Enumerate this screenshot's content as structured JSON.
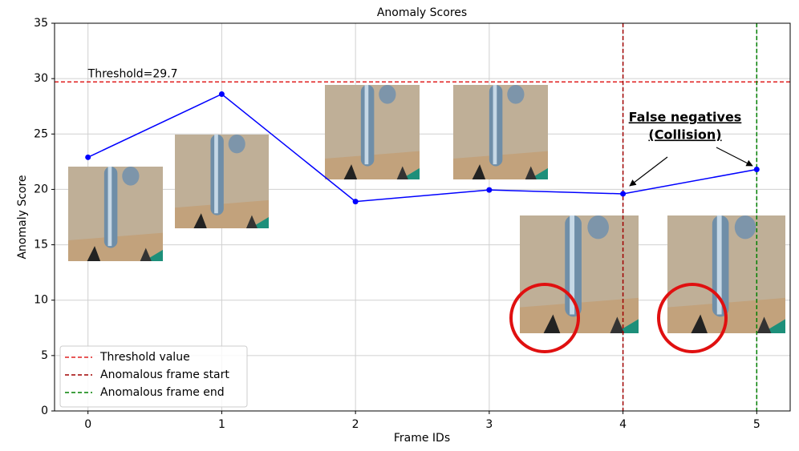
{
  "chart_data": {
    "type": "line",
    "title": "Anomaly Scores",
    "x_label": "Frame IDs",
    "y_label": "Anomaly Score",
    "x": [
      0,
      1,
      2,
      3,
      4,
      5
    ],
    "values": [
      22.9,
      28.6,
      18.9,
      19.95,
      19.6,
      21.8
    ],
    "color": "#0000ff",
    "xlim": [
      -0.25,
      5.25
    ],
    "xticks": [
      0,
      1,
      2,
      3,
      4,
      5
    ],
    "ylim": [
      0,
      35
    ],
    "yticks": [
      0,
      5,
      10,
      15,
      20,
      25,
      30,
      35
    ],
    "grid": true,
    "threshold": {
      "name": "Threshold value",
      "value": 29.7,
      "label": "Threshold=29.7",
      "color": "#e02020"
    },
    "vlines": [
      {
        "name": "Anomalous frame start",
        "x": 4,
        "color": "#a00000"
      },
      {
        "name": "Anomalous frame end",
        "x": 5,
        "color": "#008000"
      }
    ],
    "annotations": [
      "False negatives",
      "(Collision)"
    ],
    "legend": "lower left"
  }
}
